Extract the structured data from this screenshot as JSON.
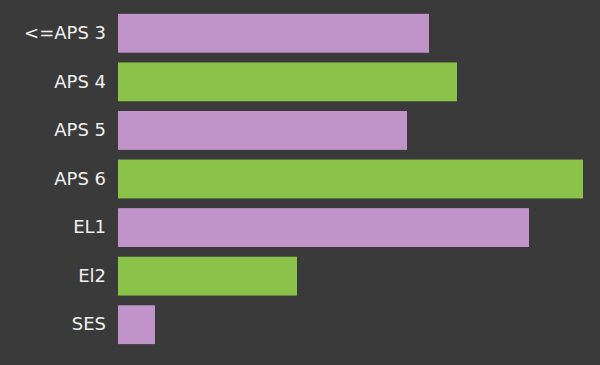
{
  "chart_data": {
    "type": "bar",
    "orientation": "horizontal",
    "categories": [
      "<=APS 3",
      "APS 4",
      "APS 5",
      "APS 6",
      "EL1",
      "El2",
      "SES"
    ],
    "values": [
      311,
      339,
      289,
      465,
      411,
      179,
      37
    ],
    "colors": [
      "#c094c8",
      "#8bc34a",
      "#c094c8",
      "#8bc34a",
      "#c094c8",
      "#8bc34a",
      "#c094c8"
    ],
    "xlim": [
      0,
      465
    ],
    "tick_labels": "y",
    "grid": false
  }
}
